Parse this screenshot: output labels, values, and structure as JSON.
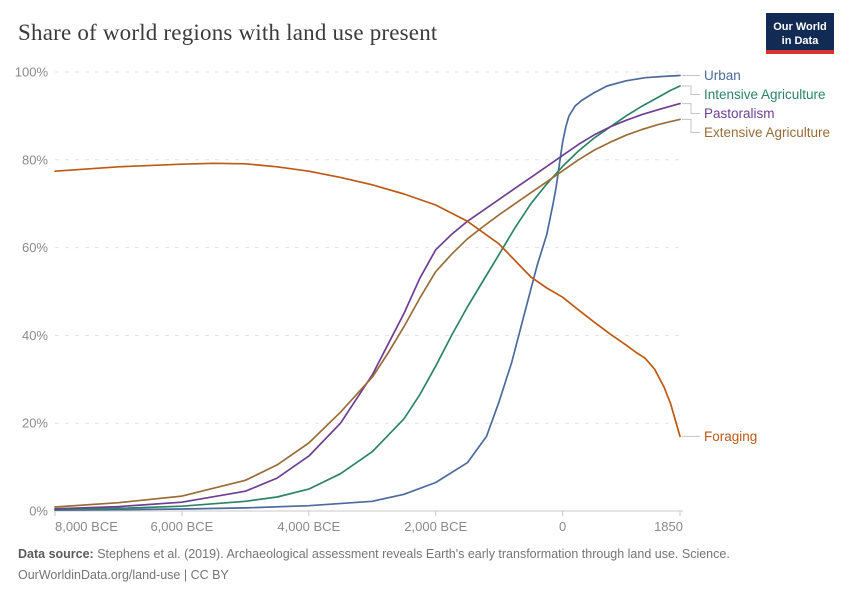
{
  "header": {
    "title": "Share of world regions with land use present",
    "logo": {
      "line1": "Our World",
      "line2": "in Data",
      "bg_color": "#122B54",
      "bar_color": "#D7352E"
    }
  },
  "footer": {
    "source_label": "Data source:",
    "source_text": " Stephens et al. (2019). Archaeological assessment reveals Earth's early transformation through land use. Science.",
    "link_text": "OurWorldinData.org/land-use",
    "separator": " | ",
    "license_text": "CC BY"
  },
  "chart_data": {
    "type": "line",
    "title": "Share of world regions with land use present",
    "xlabel": "",
    "ylabel": "",
    "x_domain": [
      -8000,
      1850
    ],
    "ylim": [
      0,
      100
    ],
    "grid": "horizontal-dashed",
    "legend_position": "right-end-of-lines",
    "x_ticks": [
      {
        "t": -8000,
        "label": "8,000 BCE",
        "align": "start"
      },
      {
        "t": -6000,
        "label": "6,000 BCE",
        "align": "middle"
      },
      {
        "t": -4000,
        "label": "4,000 BCE",
        "align": "middle"
      },
      {
        "t": -2000,
        "label": "2,000 BCE",
        "align": "middle"
      },
      {
        "t": 0,
        "label": "0",
        "align": "middle"
      },
      {
        "t": 1850,
        "label": "1850",
        "align": "end"
      }
    ],
    "y_ticks": [
      {
        "v": 0,
        "label": "0%"
      },
      {
        "v": 20,
        "label": "20%"
      },
      {
        "v": 40,
        "label": "40%"
      },
      {
        "v": 60,
        "label": "60%"
      },
      {
        "v": 80,
        "label": "80%"
      },
      {
        "v": 100,
        "label": "100%"
      }
    ],
    "axis_color": "#c8c8c8",
    "grid_color": "#e2e2e2",
    "tick_text_color": "#8a8a8a",
    "connector_color": "#c4c4c4",
    "series": [
      {
        "name": "Urban",
        "color": "#4C6A9C",
        "points": [
          [
            -8000,
            0.2
          ],
          [
            -7000,
            0.3
          ],
          [
            -6000,
            0.45
          ],
          [
            -5000,
            0.7
          ],
          [
            -4000,
            1.2
          ],
          [
            -3000,
            2.2
          ],
          [
            -2500,
            3.8
          ],
          [
            -2000,
            6.5
          ],
          [
            -1500,
            11
          ],
          [
            -1200,
            17
          ],
          [
            -1000,
            25
          ],
          [
            -800,
            34
          ],
          [
            -600,
            45
          ],
          [
            -400,
            56
          ],
          [
            -250,
            63
          ],
          [
            -150,
            70
          ],
          [
            -100,
            74
          ],
          [
            -50,
            79
          ],
          [
            0,
            84
          ],
          [
            50,
            87.5
          ],
          [
            100,
            90
          ],
          [
            200,
            92.3
          ],
          [
            300,
            93.5
          ],
          [
            500,
            95.3
          ],
          [
            700,
            96.8
          ],
          [
            1000,
            98
          ],
          [
            1300,
            98.7
          ],
          [
            1600,
            99
          ],
          [
            1850,
            99.2
          ]
        ]
      },
      {
        "name": "Intensive Agriculture",
        "color": "#2C8465",
        "points": [
          [
            -8000,
            0.3
          ],
          [
            -7000,
            0.6
          ],
          [
            -6000,
            1.1
          ],
          [
            -5000,
            2.2
          ],
          [
            -4500,
            3.2
          ],
          [
            -4000,
            5
          ],
          [
            -3500,
            8.5
          ],
          [
            -3000,
            13.5
          ],
          [
            -2500,
            21
          ],
          [
            -2250,
            26.5
          ],
          [
            -2000,
            33
          ],
          [
            -1750,
            40
          ],
          [
            -1500,
            46.5
          ],
          [
            -1250,
            52.5
          ],
          [
            -1000,
            58.5
          ],
          [
            -750,
            64.5
          ],
          [
            -500,
            70
          ],
          [
            -250,
            74.5
          ],
          [
            0,
            78.5
          ],
          [
            250,
            82
          ],
          [
            500,
            85
          ],
          [
            750,
            87.5
          ],
          [
            1000,
            90
          ],
          [
            1250,
            92.2
          ],
          [
            1500,
            94.2
          ],
          [
            1700,
            95.8
          ],
          [
            1850,
            96.8
          ]
        ]
      },
      {
        "name": "Pastoralism",
        "color": "#6D3E91",
        "points": [
          [
            -8000,
            0.5
          ],
          [
            -7000,
            1
          ],
          [
            -6000,
            2
          ],
          [
            -5000,
            4.5
          ],
          [
            -4500,
            7.5
          ],
          [
            -4000,
            12.5
          ],
          [
            -3500,
            20
          ],
          [
            -3000,
            31
          ],
          [
            -2750,
            38
          ],
          [
            -2500,
            45
          ],
          [
            -2250,
            53
          ],
          [
            -2000,
            59.5
          ],
          [
            -1750,
            63
          ],
          [
            -1500,
            66
          ],
          [
            -1250,
            68.5
          ],
          [
            -1000,
            71
          ],
          [
            -750,
            73.5
          ],
          [
            -500,
            76
          ],
          [
            -250,
            78.5
          ],
          [
            0,
            81
          ],
          [
            250,
            83.5
          ],
          [
            500,
            85.7
          ],
          [
            750,
            87.5
          ],
          [
            1000,
            89
          ],
          [
            1250,
            90.3
          ],
          [
            1500,
            91.4
          ],
          [
            1700,
            92.2
          ],
          [
            1850,
            92.8
          ]
        ]
      },
      {
        "name": "Extensive Agriculture",
        "color": "#996D39",
        "points": [
          [
            -8000,
            0.9
          ],
          [
            -7000,
            1.9
          ],
          [
            -6000,
            3.4
          ],
          [
            -5000,
            7
          ],
          [
            -4500,
            10.5
          ],
          [
            -4000,
            15.5
          ],
          [
            -3500,
            22.5
          ],
          [
            -3000,
            30.5
          ],
          [
            -2750,
            36
          ],
          [
            -2500,
            42
          ],
          [
            -2250,
            48.5
          ],
          [
            -2000,
            54.5
          ],
          [
            -1750,
            58.5
          ],
          [
            -1500,
            62
          ],
          [
            -1250,
            64.8
          ],
          [
            -1000,
            67.5
          ],
          [
            -750,
            70
          ],
          [
            -500,
            72.5
          ],
          [
            -250,
            75
          ],
          [
            0,
            77.5
          ],
          [
            250,
            80
          ],
          [
            500,
            82.2
          ],
          [
            750,
            84
          ],
          [
            1000,
            85.6
          ],
          [
            1250,
            86.9
          ],
          [
            1500,
            88
          ],
          [
            1700,
            88.7
          ],
          [
            1850,
            89.2
          ]
        ]
      },
      {
        "name": "Foraging",
        "color": "#BE5915",
        "points": [
          [
            -8000,
            77.4
          ],
          [
            -7000,
            78.4
          ],
          [
            -6000,
            79
          ],
          [
            -5500,
            79.2
          ],
          [
            -5000,
            79.1
          ],
          [
            -4500,
            78.4
          ],
          [
            -4000,
            77.4
          ],
          [
            -3500,
            76
          ],
          [
            -3000,
            74.3
          ],
          [
            -2500,
            72.2
          ],
          [
            -2000,
            69.7
          ],
          [
            -1500,
            66
          ],
          [
            -1000,
            60.8
          ],
          [
            -500,
            53.3
          ],
          [
            -250,
            50.8
          ],
          [
            0,
            48.7
          ],
          [
            250,
            45.8
          ],
          [
            500,
            43
          ],
          [
            750,
            40.3
          ],
          [
            1000,
            37.8
          ],
          [
            1150,
            36.2
          ],
          [
            1300,
            34.8
          ],
          [
            1450,
            32.3
          ],
          [
            1600,
            28.2
          ],
          [
            1700,
            24.5
          ],
          [
            1780,
            20.5
          ],
          [
            1850,
            17
          ]
        ]
      }
    ]
  }
}
